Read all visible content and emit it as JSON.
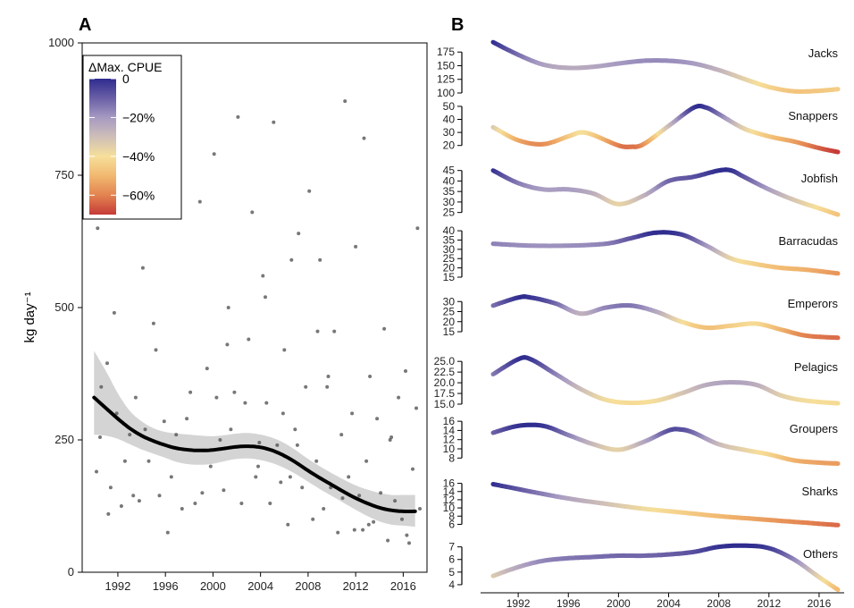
{
  "panels": {
    "a_label": "A",
    "b_label": "B"
  },
  "colors": {
    "points": "#555555",
    "trend": "#000000",
    "ribbon": "#cfcfcf"
  },
  "legend": {
    "title": "ΔMax. CPUE",
    "labels": [
      "0",
      "−20%",
      "−40%",
      "−60%"
    ],
    "values": [
      0,
      -20,
      -40,
      -60
    ],
    "range": [
      0,
      -70
    ],
    "palette": [
      "#2e2c8f",
      "#6a5fa6",
      "#a69ac2",
      "#cfbfb8",
      "#f6df9a",
      "#f1b870",
      "#e38350",
      "#c63a38"
    ]
  },
  "chart_data": [
    {
      "type": "scatter",
      "panel": "A",
      "ylabel": "kg day⁻¹",
      "xlim": [
        1989,
        2018
      ],
      "ylim": [
        0,
        1000
      ],
      "xticks": [
        1992,
        1996,
        2000,
        2004,
        2008,
        2012,
        2016
      ],
      "yticks": [
        0,
        250,
        500,
        750,
        1000
      ],
      "trend": {
        "x": [
          1990,
          1991,
          1992,
          1993,
          1994,
          1995,
          1996,
          1997,
          1998,
          1999,
          2000,
          2001,
          2002,
          2003,
          2004,
          2005,
          2006,
          2007,
          2008,
          2009,
          2010,
          2011,
          2012,
          2013,
          2014,
          2015,
          2016,
          2017
        ],
        "y": [
          330,
          310,
          290,
          272,
          258,
          248,
          240,
          234,
          231,
          230,
          231,
          234,
          237,
          238,
          236,
          230,
          220,
          207,
          192,
          178,
          165,
          152,
          140,
          130,
          122,
          117,
          115,
          115
        ],
        "lower": [
          260,
          258,
          252,
          242,
          232,
          224,
          216,
          208,
          204,
          203,
          205,
          210,
          214,
          215,
          212,
          206,
          197,
          185,
          171,
          157,
          144,
          131,
          118,
          106,
          96,
          90,
          88,
          86
        ],
        "upper": [
          418,
          380,
          338,
          305,
          285,
          272,
          265,
          262,
          260,
          258,
          257,
          259,
          262,
          263,
          260,
          254,
          244,
          230,
          214,
          200,
          187,
          175,
          164,
          156,
          150,
          146,
          146,
          146
        ]
      },
      "points": {
        "x": [
          1990.3,
          1990.5,
          1990.6,
          1991.1,
          1991.2,
          1991.4,
          1991.7,
          1991.9,
          1992.3,
          1992.6,
          1993.0,
          1993.3,
          1993.5,
          1993.8,
          1994.1,
          1994.6,
          1995.0,
          1995.5,
          1995.9,
          1996.2,
          1996.5,
          1996.9,
          1997.4,
          1997.8,
          1998.1,
          1998.5,
          1998.9,
          1999.2,
          1999.5,
          1999.8,
          2000.1,
          2000.3,
          2000.6,
          2000.9,
          2001.2,
          2001.5,
          2001.8,
          2002.1,
          2002.4,
          2002.7,
          2003.0,
          2003.3,
          2003.6,
          2003.9,
          2004.2,
          2004.5,
          2004.8,
          2005.1,
          2005.4,
          2005.7,
          2006.0,
          2006.3,
          2006.6,
          2006.9,
          2007.2,
          2007.5,
          2007.8,
          2008.1,
          2008.4,
          2008.7,
          2009.0,
          2009.3,
          2009.6,
          2009.9,
          2010.2,
          2010.5,
          2010.8,
          2011.1,
          2011.4,
          2011.7,
          2012.0,
          2012.3,
          2012.6,
          2012.9,
          2013.2,
          2013.5,
          2013.8,
          2014.1,
          2014.4,
          2014.7,
          2015.0,
          2015.3,
          2015.6,
          2015.9,
          2016.2,
          2016.5,
          2016.8,
          2017.1,
          2017.4,
          2010.9,
          2008.8,
          2006.5,
          2001.3,
          1999.1,
          1994.3,
          1995.2,
          2003.8,
          2009.7,
          2013.1,
          2014.9,
          2016.3,
          2017.2,
          1990.2,
          2012.7,
          2011.9,
          2007.1,
          2005.9,
          2004.4
        ],
        "y": [
          650,
          255,
          350,
          395,
          110,
          160,
          490,
          300,
          125,
          210,
          260,
          145,
          330,
          135,
          575,
          210,
          470,
          145,
          285,
          75,
          180,
          260,
          120,
          290,
          340,
          130,
          700,
          230,
          385,
          200,
          790,
          330,
          250,
          155,
          430,
          270,
          340,
          860,
          130,
          320,
          440,
          680,
          180,
          245,
          560,
          320,
          130,
          850,
          240,
          170,
          420,
          90,
          590,
          270,
          640,
          160,
          350,
          720,
          100,
          210,
          590,
          120,
          350,
          160,
          455,
          75,
          260,
          890,
          180,
          300,
          615,
          145,
          80,
          210,
          370,
          95,
          290,
          150,
          460,
          60,
          255,
          135,
          330,
          100,
          380,
          55,
          195,
          310,
          120,
          140,
          455,
          180,
          500,
          150,
          270,
          420,
          200,
          370,
          90,
          250,
          70,
          650,
          190,
          820,
          80,
          240,
          300,
          520
        ]
      }
    },
    {
      "type": "line",
      "panel": "B",
      "xlim": [
        1989,
        2018
      ],
      "xticks": [
        1992,
        1996,
        2000,
        2004,
        2008,
        2012,
        2016
      ],
      "color_encoding": "ΔMax. CPUE",
      "series": [
        {
          "name": "Jacks",
          "yticks": [
            100,
            125,
            150,
            175
          ],
          "ylim": [
            100,
            195
          ],
          "x": [
            1990,
            1992,
            1994,
            1996,
            1998,
            2000,
            2002,
            2004,
            2006,
            2008,
            2010,
            2012,
            2014,
            2016,
            2017.5
          ],
          "y": [
            193,
            170,
            152,
            146,
            148,
            154,
            159,
            159,
            154,
            142,
            126,
            111,
            103,
            104,
            107
          ]
        },
        {
          "name": "Snappers",
          "yticks": [
            20,
            30,
            40,
            50
          ],
          "ylim": [
            15,
            52
          ],
          "x": [
            1990,
            1992,
            1994,
            1996,
            1997,
            1998,
            2000,
            2001,
            2002,
            2004,
            2006,
            2007,
            2008,
            2010,
            2012,
            2014,
            2016,
            2017.5
          ],
          "y": [
            34,
            24,
            21,
            27,
            30,
            28,
            20,
            19,
            21,
            35,
            49,
            49,
            44,
            33,
            27,
            23,
            18,
            15
          ]
        },
        {
          "name": "Jobfish",
          "yticks": [
            25,
            30,
            35,
            40,
            45
          ],
          "ylim": [
            24,
            47
          ],
          "x": [
            1990,
            1992,
            1994,
            1996,
            1998,
            2000,
            2002,
            2004,
            2006,
            2008,
            2009,
            2010,
            2012,
            2014,
            2016,
            2017.5
          ],
          "y": [
            45,
            39,
            36,
            36,
            34,
            29,
            33,
            40,
            42,
            45,
            45,
            42,
            36,
            31,
            27,
            24
          ]
        },
        {
          "name": "Barracudas",
          "yticks": [
            15,
            20,
            25,
            30,
            35,
            40
          ],
          "ylim": [
            15,
            41
          ],
          "x": [
            1990,
            1993,
            1996,
            1999,
            2001,
            2003,
            2005,
            2007,
            2009,
            2011,
            2013,
            2015,
            2017.5
          ],
          "y": [
            33,
            32,
            32,
            33,
            36,
            39,
            38,
            32,
            25,
            22,
            20,
            19,
            17
          ]
        },
        {
          "name": "Emperors",
          "yticks": [
            15,
            20,
            25,
            30
          ],
          "ylim": [
            11,
            35
          ],
          "x": [
            1990,
            1992,
            1993,
            1995,
            1997,
            1999,
            2001,
            2003,
            2005,
            2007,
            2009,
            2011,
            2013,
            2015,
            2017.5
          ],
          "y": [
            28,
            32,
            32,
            29,
            24,
            27,
            28,
            25,
            20,
            17,
            18,
            19,
            16,
            13,
            12
          ]
        },
        {
          "name": "Pelagics",
          "yticks": [
            15.0,
            17.5,
            20.0,
            22.5,
            25.0
          ],
          "ylim": [
            15,
            26.5
          ],
          "x": [
            1990,
            1992,
            1993,
            1995,
            1997,
            1999,
            2001,
            2003,
            2005,
            2007,
            2009,
            2011,
            2013,
            2015,
            2017.5
          ],
          "y": [
            22,
            25.5,
            25.5,
            22,
            18.5,
            16,
            15.3,
            15.8,
            17.5,
            19.5,
            20.1,
            19.5,
            17,
            15.8,
            15.2
          ]
        },
        {
          "name": "Groupers",
          "yticks": [
            8,
            10,
            12,
            14,
            16
          ],
          "ylim": [
            6.5,
            17
          ],
          "x": [
            1990,
            1992,
            1994,
            1996,
            1998,
            2000,
            2002,
            2004,
            2005,
            2006,
            2008,
            2010,
            2012,
            2014,
            2016,
            2017.5
          ],
          "y": [
            13.5,
            15,
            15,
            13,
            11,
            9.8,
            11.5,
            14,
            14.2,
            13.5,
            11,
            9.8,
            8.8,
            7.5,
            7,
            6.8
          ]
        },
        {
          "name": "Sharks",
          "yticks": [
            6,
            8,
            10,
            12,
            14,
            16
          ],
          "ylim": [
            5,
            17
          ],
          "x": [
            1990,
            1993,
            1996,
            1999,
            2002,
            2005,
            2008,
            2011,
            2014,
            2017.5
          ],
          "y": [
            15.8,
            14,
            12.3,
            11,
            9.8,
            8.9,
            8,
            7.3,
            6.6,
            5.8
          ]
        },
        {
          "name": "Others",
          "yticks": [
            4,
            5,
            6,
            7
          ],
          "ylim": [
            3.5,
            7.4
          ],
          "x": [
            1990,
            1992,
            1994,
            1996,
            1998,
            2000,
            2002,
            2004,
            2006,
            2008,
            2010,
            2012,
            2014,
            2016,
            2017.5
          ],
          "y": [
            4.7,
            5.4,
            5.9,
            6.1,
            6.2,
            6.3,
            6.3,
            6.4,
            6.6,
            7.0,
            7.1,
            6.9,
            6.0,
            4.6,
            3.6
          ]
        }
      ]
    }
  ]
}
